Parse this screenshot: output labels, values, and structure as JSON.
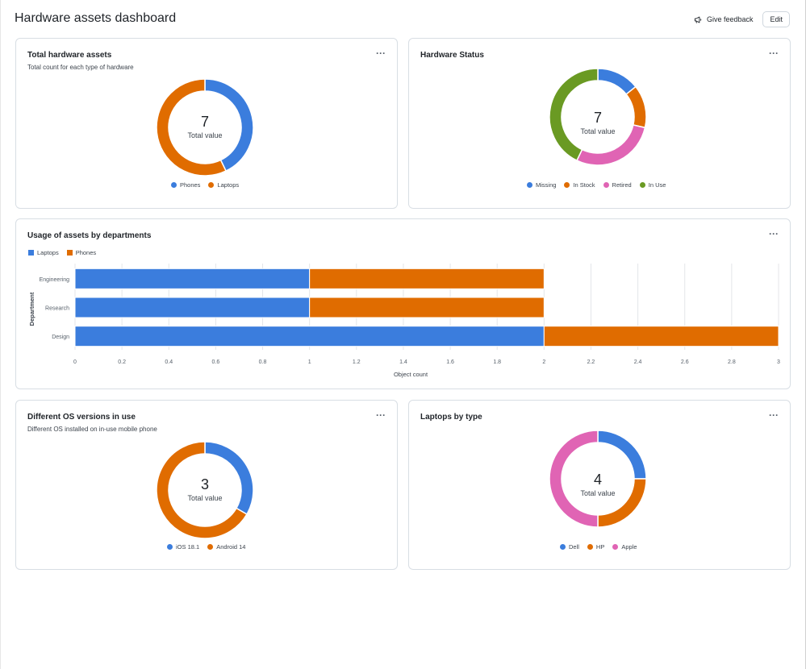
{
  "header": {
    "title": "Hardware assets dashboard",
    "feedback_label": "Give feedback",
    "edit_label": "Edit",
    "feedback_icon": "megaphone-icon"
  },
  "colors": {
    "blue": "#3b7ddd",
    "orange": "#e06c00",
    "pink": "#e064b4",
    "green": "#6a9a23"
  },
  "cards": {
    "total_assets": {
      "title": "Total hardware assets",
      "subtitle": "Total count for each type of hardware",
      "center_value": "7",
      "center_label": "Total value",
      "legend": [
        "Phones",
        "Laptops"
      ]
    },
    "hardware_status": {
      "title": "Hardware Status",
      "center_value": "7",
      "center_label": "Total value",
      "legend": [
        "Missing",
        "In Stock",
        "Retired",
        "In Use"
      ]
    },
    "usage": {
      "title": "Usage of assets by departments",
      "legend": [
        "Laptops",
        "Phones"
      ]
    },
    "os_versions": {
      "title": "Different OS versions in use",
      "subtitle": "Different OS installed on in-use mobile phone",
      "center_value": "3",
      "center_label": "Total value",
      "legend": [
        "iOS 18.1",
        "Android 14"
      ]
    },
    "laptops_type": {
      "title": "Laptops by type",
      "center_value": "4",
      "center_label": "Total value",
      "legend": [
        "Dell",
        "HP",
        "Apple"
      ]
    }
  },
  "chart_data": [
    {
      "type": "pie",
      "title": "Total hardware assets",
      "categories": [
        "Phones",
        "Laptops"
      ],
      "values": [
        3,
        4
      ],
      "colors": [
        "#3b7ddd",
        "#e06c00"
      ]
    },
    {
      "type": "pie",
      "title": "Hardware Status",
      "categories": [
        "Missing",
        "In Stock",
        "Retired",
        "In Use"
      ],
      "values": [
        1,
        1,
        2,
        3
      ],
      "colors": [
        "#3b7ddd",
        "#e06c00",
        "#e064b4",
        "#6a9a23"
      ]
    },
    {
      "type": "bar",
      "title": "Usage of assets by departments",
      "orientation": "horizontal",
      "stacked": true,
      "categories": [
        "Engineering",
        "Research",
        "Design"
      ],
      "series": [
        {
          "name": "Laptops",
          "values": [
            1,
            1,
            2
          ],
          "color": "#3b7ddd"
        },
        {
          "name": "Phones",
          "values": [
            1,
            1,
            1
          ],
          "color": "#e06c00"
        }
      ],
      "xlabel": "Object count",
      "ylabel": "Department",
      "xlim": [
        0,
        3
      ],
      "xticks": [
        "0",
        "0.2",
        "0.4",
        "0.6",
        "0.8",
        "1",
        "1.2",
        "1.4",
        "1.6",
        "1.8",
        "2",
        "2.2",
        "2.4",
        "2.6",
        "2.8",
        "3"
      ],
      "grid": true,
      "legend": "top-left"
    },
    {
      "type": "pie",
      "title": "Different OS versions in use",
      "categories": [
        "iOS 18.1",
        "Android 14"
      ],
      "values": [
        1,
        2
      ],
      "colors": [
        "#3b7ddd",
        "#e06c00"
      ]
    },
    {
      "type": "pie",
      "title": "Laptops by type",
      "categories": [
        "Dell",
        "HP",
        "Apple"
      ],
      "values": [
        1,
        1,
        2
      ],
      "colors": [
        "#3b7ddd",
        "#e06c00",
        "#e064b4"
      ]
    }
  ]
}
